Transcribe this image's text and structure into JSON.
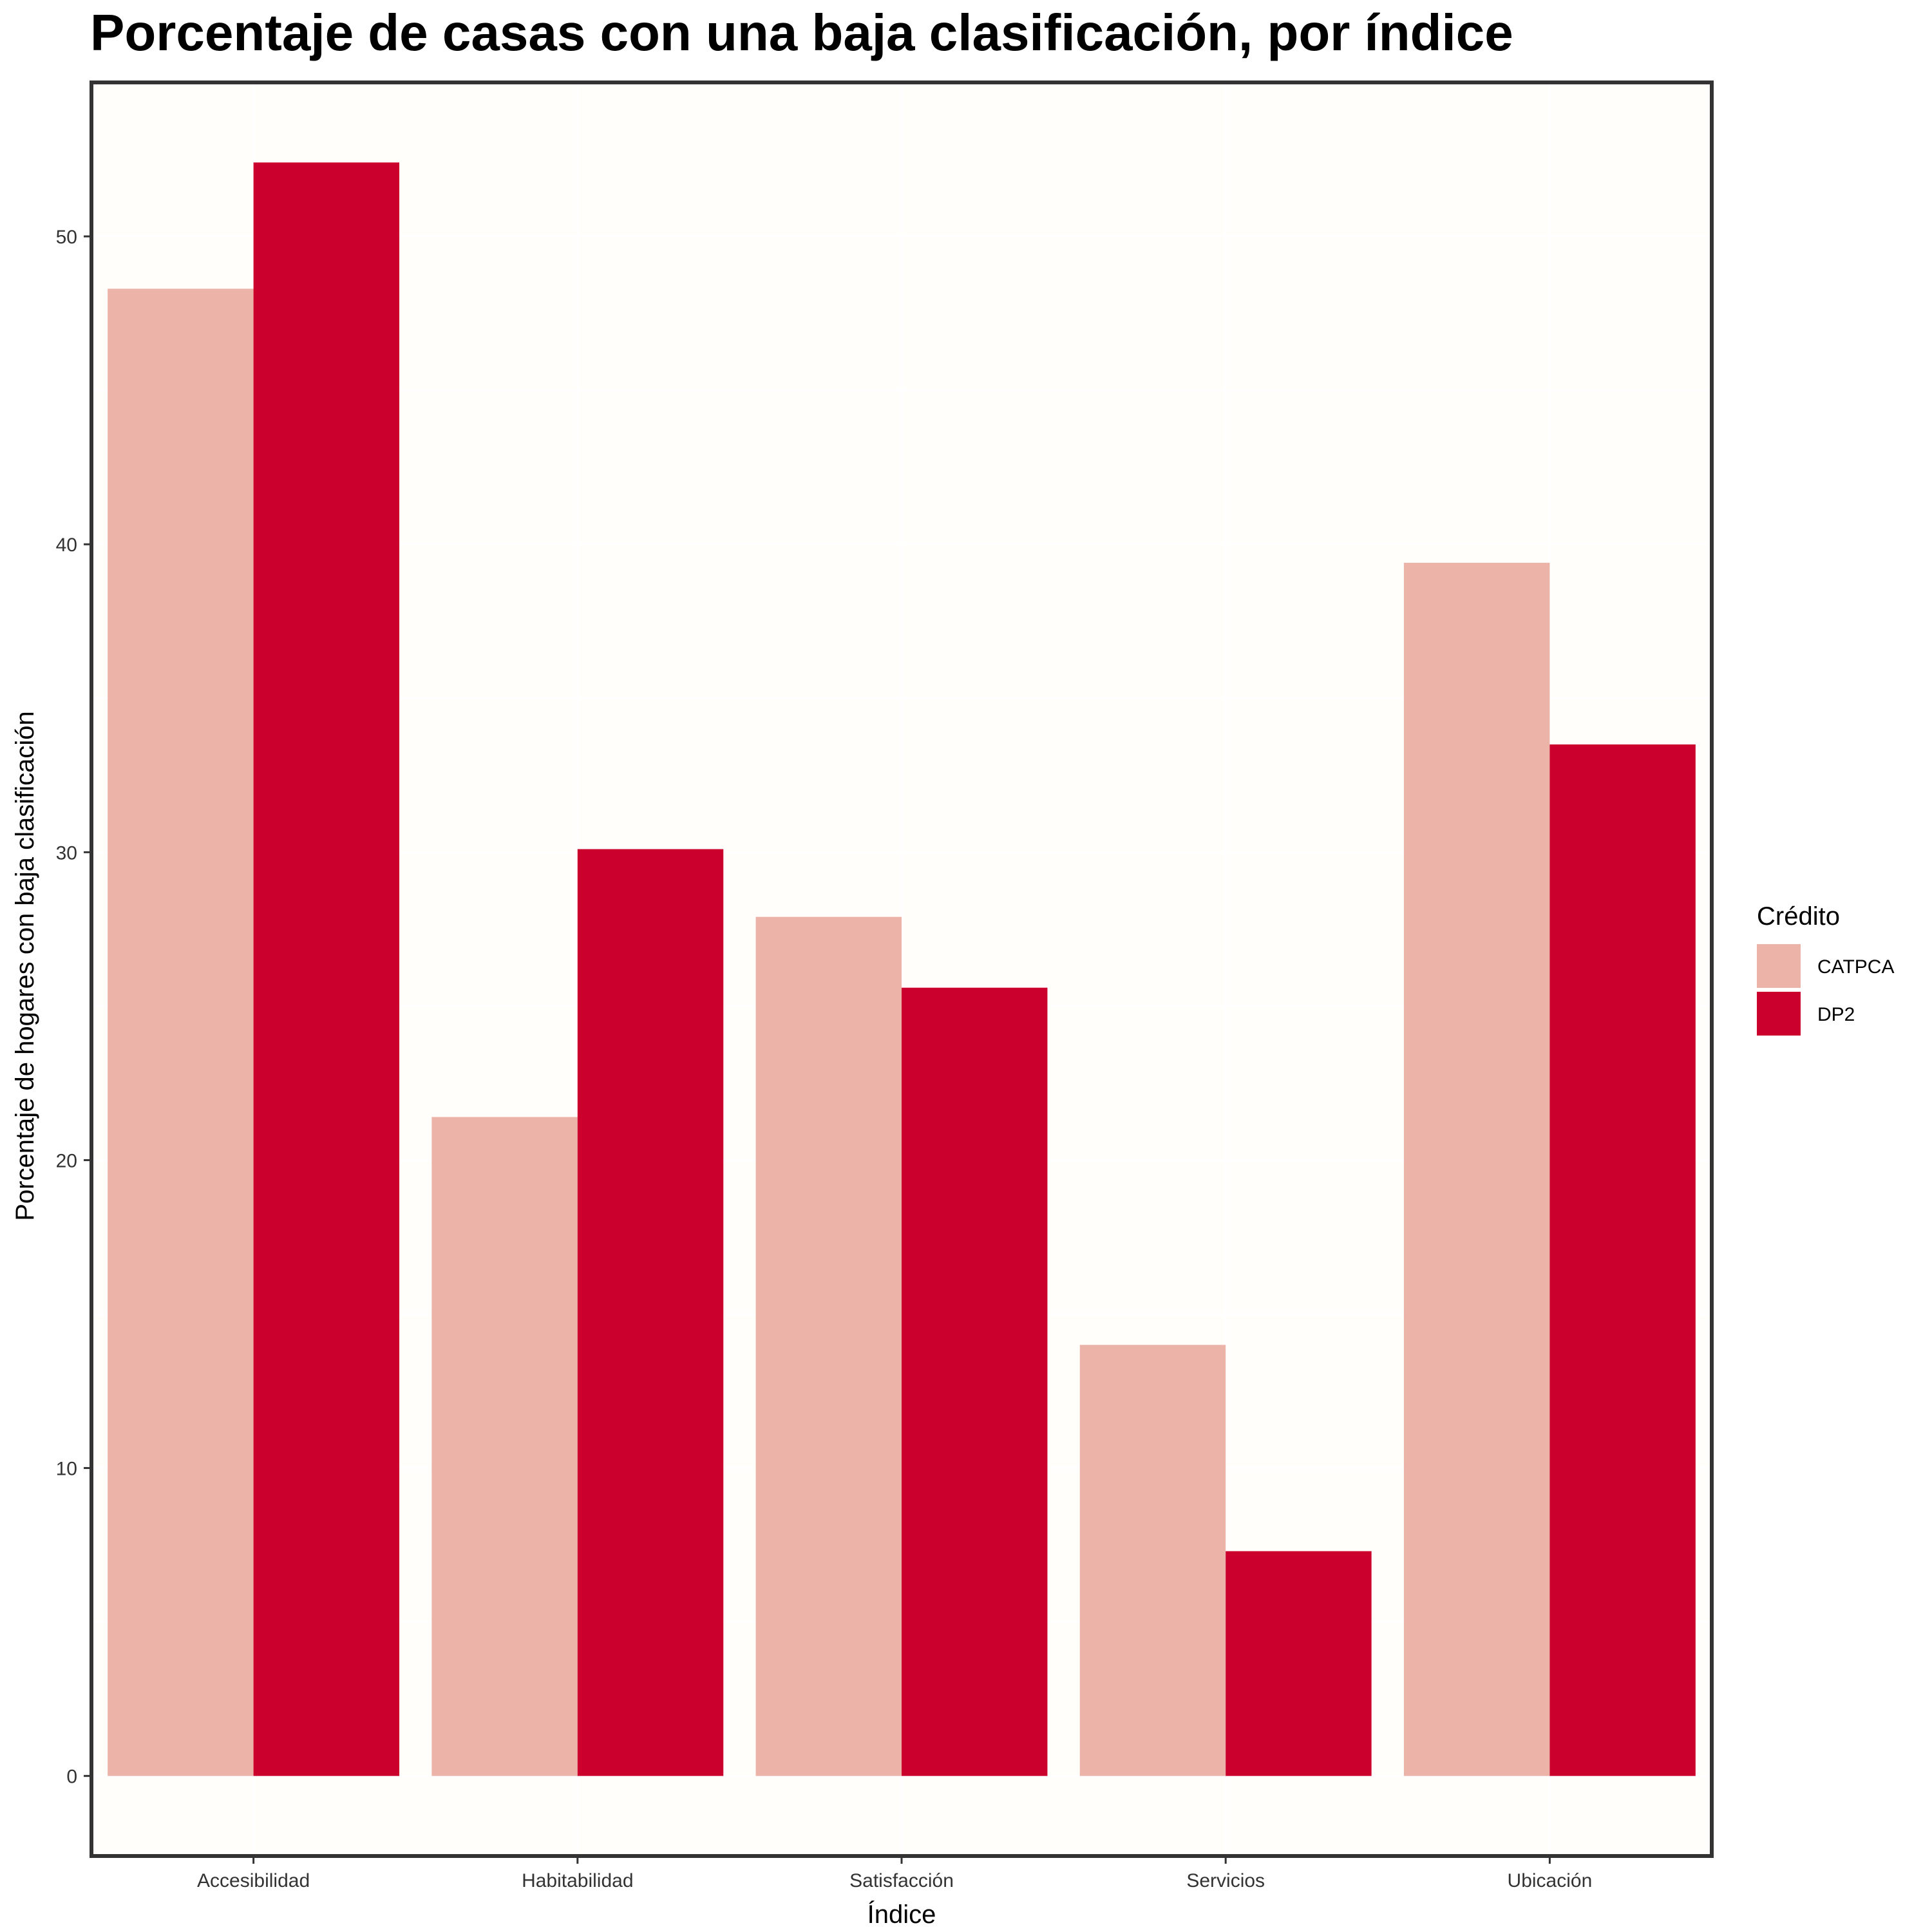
{
  "chart_data": {
    "type": "bar",
    "title": "Porcentaje de casas con una baja clasificación, por índice",
    "xlabel": "Índice",
    "ylabel": "Porcentaje de hogares con baja clasificación",
    "categories": [
      "Accesibilidad",
      "Habitabilidad",
      "Satisfacción",
      "Servicios",
      "Ubicación"
    ],
    "series": [
      {
        "name": "CATPCA",
        "color": "#ECB3A8",
        "values": [
          48.3,
          21.4,
          27.9,
          14.0,
          39.4
        ]
      },
      {
        "name": "DP2",
        "color": "#CC002C",
        "values": [
          52.4,
          30.1,
          25.6,
          7.3,
          33.5
        ]
      }
    ],
    "ylim": [
      -2.6,
      55.0
    ],
    "yticks": [
      0,
      10,
      20,
      30,
      40,
      50
    ],
    "grid": true,
    "legend": {
      "title": "Crédito",
      "position": "right"
    },
    "colors": {
      "panel_background": "#FFFEFA",
      "panel_border": "#333333",
      "gridline": "#FFFFFF"
    }
  }
}
